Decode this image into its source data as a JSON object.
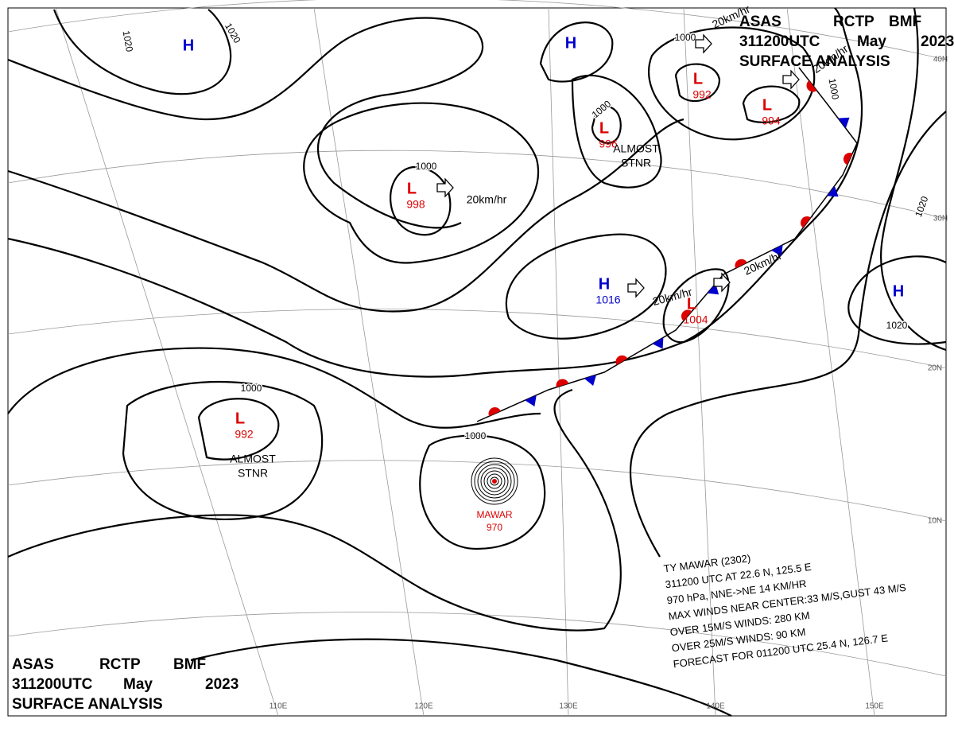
{
  "header": {
    "lines": [
      [
        "ASAS",
        "RCTP",
        "BMF"
      ],
      [
        "311200UTC",
        "May",
        "2023"
      ],
      [
        "SURFACE ANALYSIS"
      ]
    ]
  },
  "systems": [
    {
      "symbol": "H"
    },
    {
      "symbol": "H"
    },
    {
      "symbol": "L",
      "pressure": 998
    },
    {
      "symbol": "L",
      "pressure": 996
    },
    {
      "symbol": "L",
      "pressure": 992
    },
    {
      "symbol": "L",
      "pressure": 994
    },
    {
      "symbol": "H",
      "pressure": 1016
    },
    {
      "symbol": "L",
      "pressure": 1004
    },
    {
      "symbol": "H"
    },
    {
      "symbol": "L",
      "pressure": 992
    }
  ],
  "typhoon": {
    "name": "MAWAR",
    "pressure": 970,
    "info": [
      "TY MAWAR (2302)",
      "311200 UTC AT 22.6 N, 125.5 E",
      "970 hPa, NNE->NE 14 KM/HR",
      "MAX WINDS NEAR CENTER:33 M/S,GUST 43 M/S",
      "OVER 15M/S WINDS: 280 KM",
      "OVER 25M/S WINDS: 90 KM",
      "FORECAST FOR 011200 UTC 25.4 N, 126.7 E"
    ]
  },
  "isobar_labels": [
    1020,
    1020,
    1000,
    1000,
    1000,
    1000,
    1000,
    1000,
    1020,
    1020
  ],
  "movements": [
    "20km/hr",
    "20km/hr",
    "20km/hr",
    "20km/hr",
    "20km/hr"
  ],
  "notes": [
    [
      "ALMOST",
      "STNR"
    ],
    [
      "ALMOST",
      "STNR"
    ]
  ],
  "longitudes": [
    "110E",
    "120E",
    "130E",
    "140E",
    "150E"
  ],
  "latitudes": [
    "40N",
    "30N",
    "20N",
    "10N"
  ]
}
